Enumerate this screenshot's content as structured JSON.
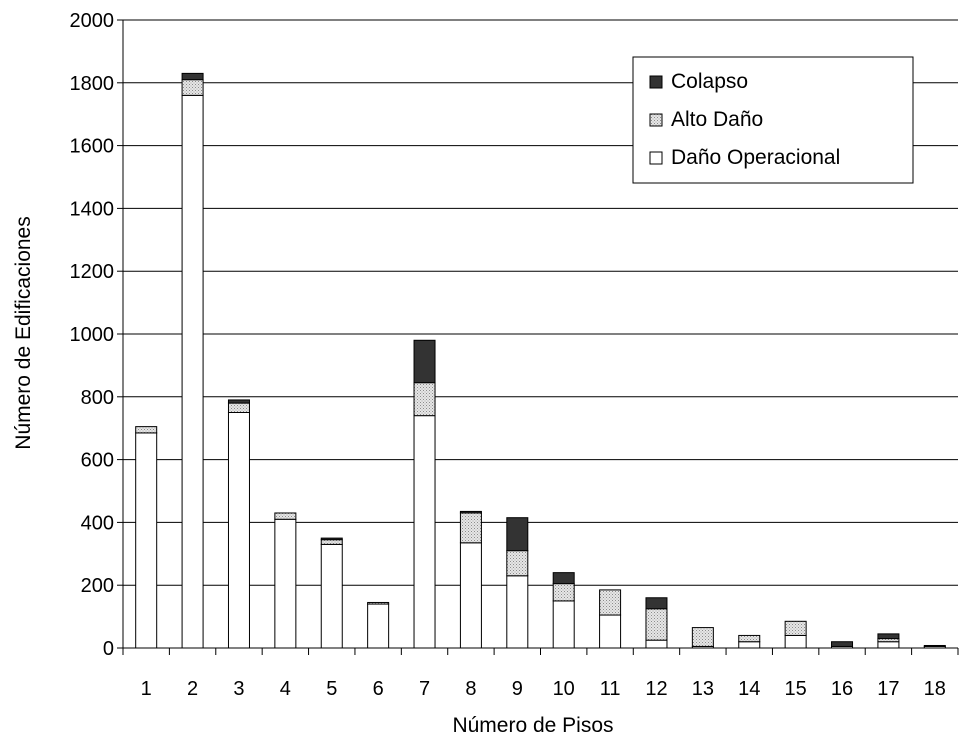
{
  "chart_data": {
    "type": "bar",
    "stacked": true,
    "title": "",
    "xlabel": "Número de Pisos",
    "ylabel": "Número de Edificaciones",
    "ylim": [
      0,
      2000
    ],
    "yticks": [
      0,
      200,
      400,
      600,
      800,
      1000,
      1200,
      1400,
      1600,
      1800,
      2000
    ],
    "grid": true,
    "legend_position": "top-right",
    "categories": [
      "1",
      "2",
      "3",
      "4",
      "5",
      "6",
      "7",
      "8",
      "9",
      "10",
      "11",
      "12",
      "13",
      "14",
      "15",
      "16",
      "17",
      "18"
    ],
    "series": [
      {
        "name": "Daño Operacional",
        "color": "#ffffff",
        "pattern": "none",
        "values": [
          685,
          1760,
          750,
          410,
          330,
          140,
          740,
          335,
          230,
          150,
          105,
          25,
          5,
          20,
          40,
          5,
          20,
          5
        ]
      },
      {
        "name": "Alto Daño",
        "color": "#e0e0e0",
        "pattern": "dots",
        "values": [
          20,
          50,
          30,
          20,
          15,
          5,
          105,
          95,
          80,
          55,
          80,
          100,
          60,
          20,
          45,
          0,
          10,
          0
        ]
      },
      {
        "name": "Colapso",
        "color": "#333333",
        "pattern": "none",
        "values": [
          0,
          20,
          10,
          0,
          5,
          0,
          135,
          5,
          105,
          35,
          0,
          35,
          0,
          0,
          0,
          15,
          15,
          3
        ]
      }
    ],
    "legend_order": [
      "Colapso",
      "Alto Daño",
      "Daño Operacional"
    ]
  }
}
